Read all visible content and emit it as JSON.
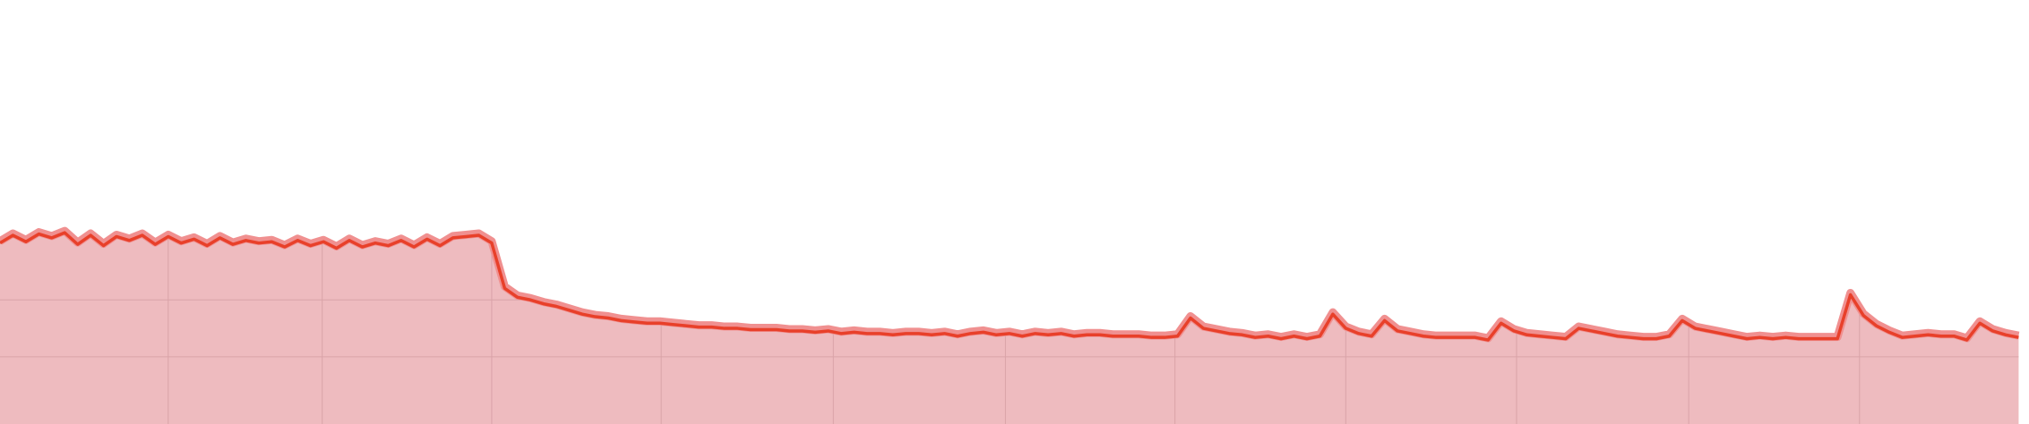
{
  "chart_data": {
    "type": "area",
    "x": [
      0,
      10,
      20,
      30,
      40,
      50,
      60,
      70,
      80,
      90,
      100,
      110,
      120,
      130,
      140,
      150,
      160,
      170,
      180,
      190,
      200,
      210,
      220,
      230,
      240,
      250,
      260,
      270,
      280,
      290,
      300,
      310,
      320,
      330,
      340,
      350,
      360,
      370,
      380,
      390,
      400,
      410,
      420,
      430,
      440,
      450,
      460,
      470,
      480,
      490,
      500,
      510,
      520,
      530,
      540,
      550,
      560,
      570,
      580,
      590,
      600,
      610,
      620,
      630,
      640,
      650,
      660,
      670,
      680,
      690,
      700,
      710,
      720,
      730,
      740,
      750,
      760,
      770,
      780,
      790,
      800,
      810,
      820,
      830,
      840,
      850,
      860,
      870,
      880,
      890,
      900,
      910,
      920,
      930,
      940,
      950,
      960,
      970,
      980,
      990,
      1000,
      1010,
      1020,
      1030,
      1040,
      1050,
      1060,
      1070,
      1080,
      1090,
      1100,
      1110,
      1120,
      1130,
      1140,
      1150,
      1160,
      1170,
      1180,
      1190,
      1200,
      1210,
      1220,
      1230,
      1240,
      1250,
      1260,
      1270,
      1280,
      1290,
      1300,
      1310,
      1320,
      1330,
      1340,
      1350,
      1360,
      1370,
      1380,
      1390,
      1400,
      1410,
      1420,
      1430,
      1440,
      1450,
      1460,
      1470,
      1480,
      1490,
      1500,
      1510,
      1520,
      1530,
      1540,
      1550,
      1560
    ],
    "series": [
      {
        "color": "#e8402a",
        "fill": "#eebbbf",
        "band_color": "#f09090",
        "values": [
          140,
          146,
          141,
          147,
          144,
          148,
          139,
          146,
          138,
          145,
          142,
          146,
          139,
          145,
          140,
          143,
          138,
          144,
          139,
          142,
          140,
          141,
          137,
          142,
          138,
          141,
          136,
          142,
          137,
          140,
          138,
          142,
          137,
          143,
          138,
          144,
          145,
          146,
          140,
          105,
          98,
          96,
          93,
          91,
          88,
          85,
          83,
          82,
          80,
          79,
          78,
          78,
          77,
          76,
          75,
          75,
          74,
          74,
          73,
          73,
          73,
          72,
          72,
          71,
          72,
          70,
          71,
          70,
          70,
          69,
          70,
          70,
          69,
          70,
          68,
          70,
          71,
          69,
          70,
          68,
          70,
          69,
          70,
          68,
          69,
          69,
          68,
          68,
          68,
          67,
          67,
          68,
          82,
          74,
          72,
          70,
          69,
          67,
          68,
          66,
          68,
          66,
          68,
          85,
          74,
          70,
          68,
          80,
          72,
          70,
          68,
          67,
          67,
          67,
          67,
          65,
          78,
          72,
          69,
          68,
          67,
          66,
          74,
          72,
          70,
          68,
          67,
          66,
          66,
          68,
          80,
          74,
          72,
          70,
          68,
          66,
          67,
          66,
          67,
          66,
          66,
          66,
          66,
          100,
          84,
          76,
          71,
          67,
          68,
          69,
          68,
          68,
          65,
          78,
          72,
          69,
          67
        ]
      }
    ],
    "xlim": [
      0,
      1568
    ],
    "ylim": [
      0,
      328
    ],
    "xticks": [
      130,
      249,
      380,
      511,
      644,
      777,
      908,
      1040,
      1172,
      1305,
      1437
    ],
    "yticks": [
      52,
      96
    ],
    "grid": true,
    "grid_color": "#d9a3a8"
  }
}
